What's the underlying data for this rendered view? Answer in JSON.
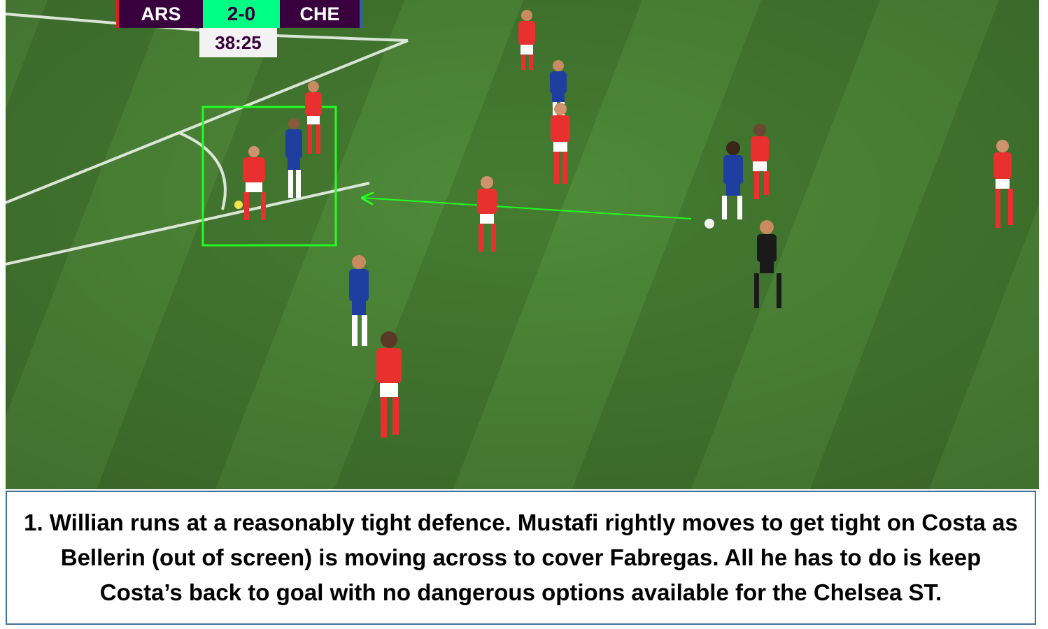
{
  "scorebug": {
    "home": "ARS",
    "score": "2-0",
    "away": "CHE",
    "clock": "38:25"
  },
  "annotations": {
    "highlight_color": "#22ff22",
    "arrow_color": "#22ff22"
  },
  "caption": "1. Willian runs at a reasonably tight defence. Mustafi rightly moves to get tight on Costa as Bellerin (out of screen) is moving across to cover Fabregas. All he has to do is keep Costa’s back to goal with no dangerous options available for the Chelsea ST.",
  "colors": {
    "pitch_light": "#4f8a39",
    "pitch_dark": "#457c31",
    "arsenal_shirt": "#e8312f",
    "chelsea_shirt": "#1e3fa0",
    "referee": "#1a1a1a"
  }
}
